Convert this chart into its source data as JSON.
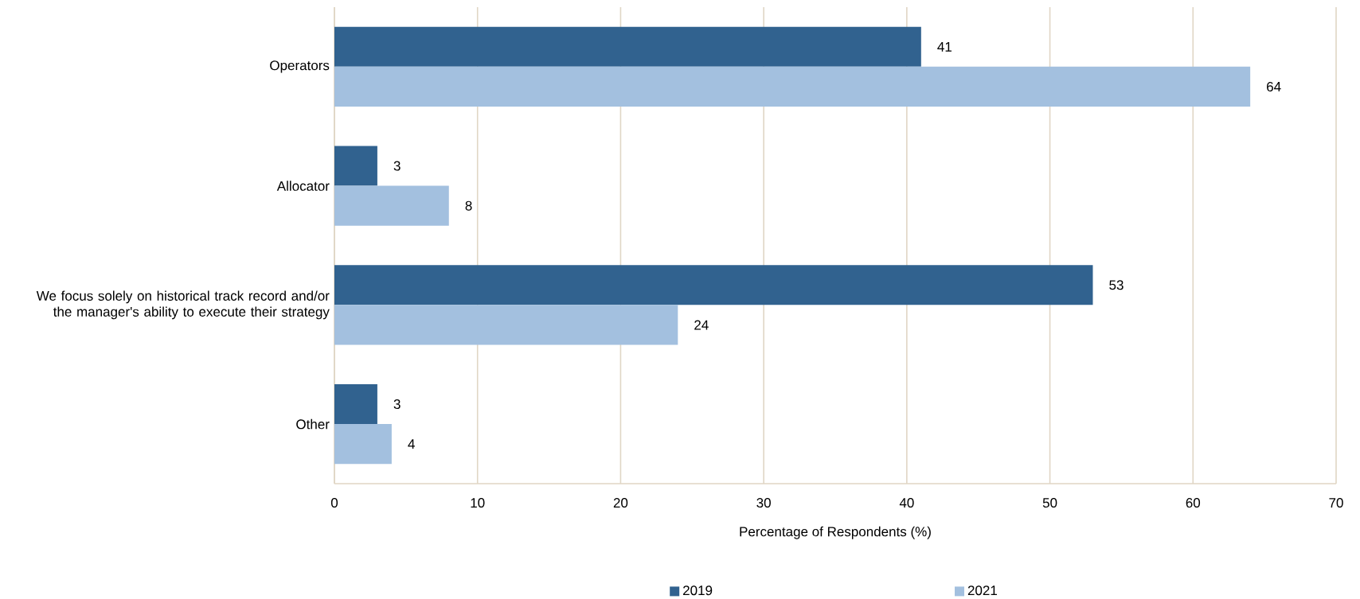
{
  "chart_data": {
    "type": "bar",
    "orientation": "horizontal",
    "xlabel": "Percentage of Respondents (%)",
    "categories": [
      "Operators",
      "Allocator",
      "We focus solely on historical track record and/or the manager's ability to execute their strategy",
      "Other"
    ],
    "series": [
      {
        "name": "2019",
        "color": "#31628f",
        "values": [
          41,
          3,
          53,
          3
        ]
      },
      {
        "name": "2021",
        "color": "#a3c0df",
        "values": [
          64,
          8,
          24,
          4
        ]
      }
    ],
    "xlim": [
      0,
      70
    ],
    "xticks": [
      0,
      10,
      20,
      30,
      40,
      50,
      60,
      70
    ],
    "grid": "x",
    "legend": "bottom",
    "data_labels": true
  }
}
